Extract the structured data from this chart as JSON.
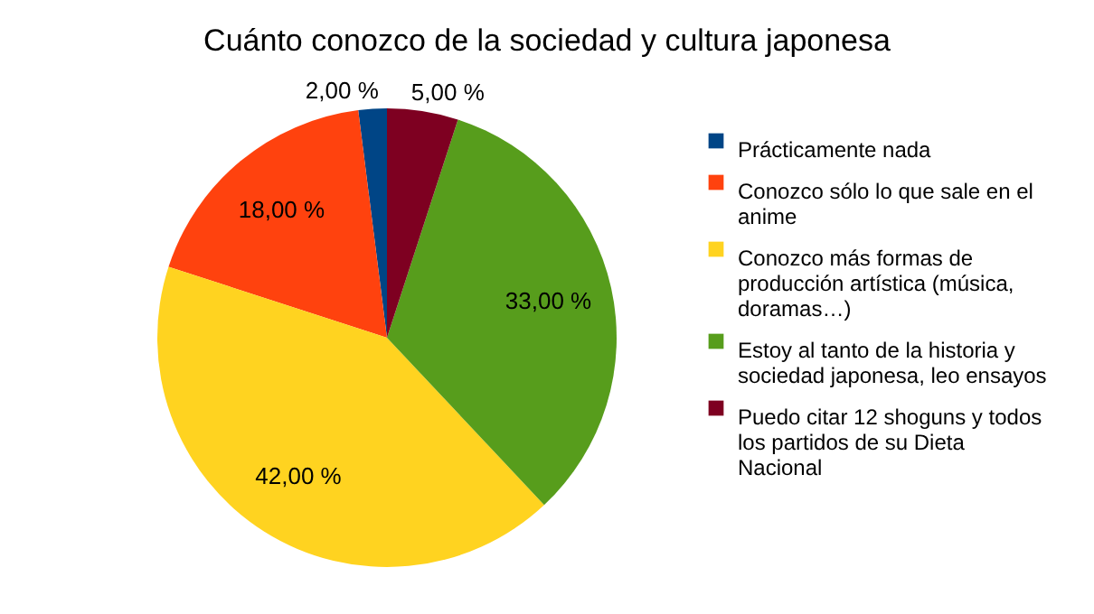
{
  "chart_data": {
    "type": "pie",
    "title": "Cuánto conozco de la sociedad y cultura japonesa",
    "categories": [
      "Prácticamente nada",
      "Conozco sólo lo que sale en el anime",
      "Conozco más formas de producción artística (música, doramas…)",
      "Estoy al tanto de la historia y sociedad japonesa, leo ensayos",
      "Puedo citar 12 shoguns y todos los partidos de su Dieta Nacional"
    ],
    "values": [
      2,
      18,
      42,
      33,
      5
    ],
    "value_labels": [
      "2,00 %",
      "18,00 %",
      "42,00 %",
      "33,00 %",
      "5,00 %"
    ],
    "colors": [
      "#004586",
      "#ff420e",
      "#ffd320",
      "#579d1c",
      "#7e0021"
    ],
    "legend": "right"
  }
}
